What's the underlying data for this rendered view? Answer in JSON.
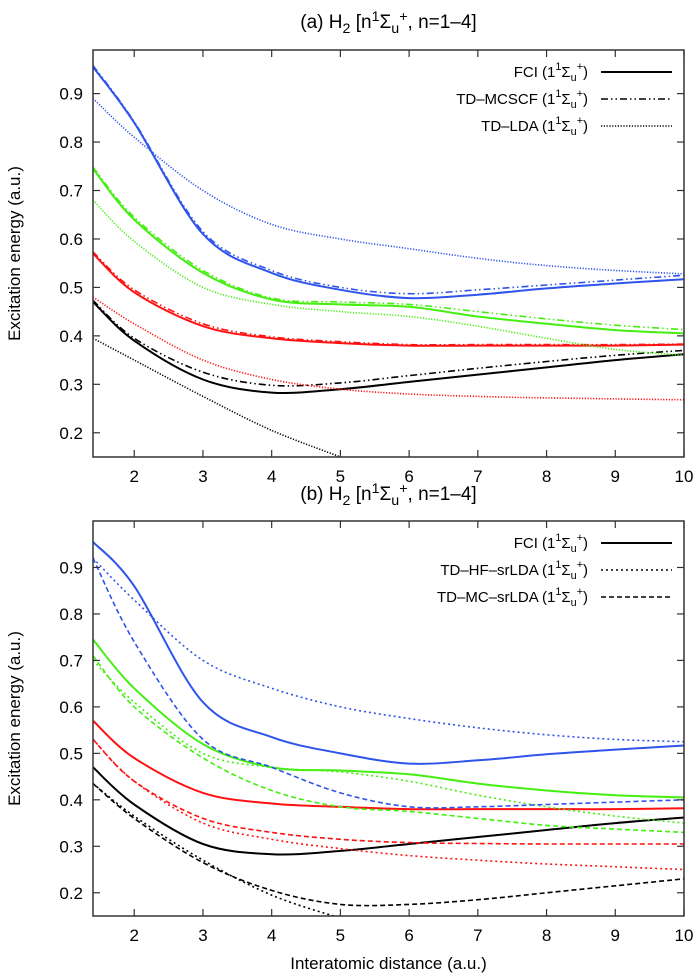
{
  "chart_data": [
    {
      "type": "line",
      "panel_id": "a",
      "title": "(a) H2 [n1Σu+, n=1–4]",
      "title_parts": {
        "prefix": "(a) H",
        "sub1": "2",
        "mid": " [n",
        "sup1": "1",
        "sigma": "Σ",
        "sub2": "u",
        "sup2": "+",
        "suffix": ", n=1–4]"
      },
      "xlabel": "",
      "ylabel": "Excitation energy (a.u.)",
      "xlim": [
        1.4,
        10
      ],
      "ylim": [
        0.15,
        0.99
      ],
      "xticks": [
        2,
        3,
        4,
        5,
        6,
        7,
        8,
        9,
        10
      ],
      "yticks": [
        0.2,
        0.3,
        0.4,
        0.5,
        0.6,
        0.7,
        0.8,
        0.9
      ],
      "ytick_labels": [
        "0.2",
        "0.3",
        "0.4",
        "0.5",
        "0.6",
        "0.7",
        "0.8",
        "0.9"
      ],
      "grid": false,
      "legend_position": "top-right",
      "legend": [
        {
          "label": "FCI (1",
          "sup1": "1",
          "sigma": "Σ",
          "sub": "u",
          "sup2": "+",
          "close": ")",
          "style": "solid"
        },
        {
          "label": "TD–MCSCF (1",
          "sup1": "1",
          "sigma": "Σ",
          "sub": "u",
          "sup2": "+",
          "close": ")",
          "style": "dashdotdot"
        },
        {
          "label": "TD–LDA (1",
          "sup1": "1",
          "sigma": "Σ",
          "sub": "u",
          "sup2": "+",
          "close": ")",
          "style": "dotted-fine"
        }
      ],
      "x": [
        1.4,
        2,
        3,
        4,
        5,
        6,
        7,
        8,
        9,
        10
      ],
      "series": [
        {
          "name": "FCI n=4",
          "method": "FCI",
          "color": "#2f54eb",
          "style": "solid",
          "values": [
            0.955,
            0.84,
            0.61,
            0.53,
            0.495,
            0.478,
            0.485,
            0.498,
            0.508,
            0.517
          ]
        },
        {
          "name": "FCI n=3",
          "method": "FCI",
          "color": "#44ee11",
          "style": "solid",
          "values": [
            0.745,
            0.64,
            0.53,
            0.475,
            0.465,
            0.46,
            0.44,
            0.425,
            0.412,
            0.405
          ]
        },
        {
          "name": "FCI n=2",
          "method": "FCI",
          "color": "#ff1111",
          "style": "solid",
          "values": [
            0.57,
            0.49,
            0.42,
            0.395,
            0.385,
            0.38,
            0.38,
            0.38,
            0.38,
            0.382
          ]
        },
        {
          "name": "FCI n=1",
          "method": "FCI",
          "color": "#000000",
          "style": "solid",
          "values": [
            0.47,
            0.39,
            0.31,
            0.283,
            0.29,
            0.305,
            0.32,
            0.335,
            0.35,
            0.362
          ]
        },
        {
          "name": "TD-MCSCF n=4",
          "method": "TD-MCSCF",
          "color": "#2f54eb",
          "style": "dashdotdot",
          "values": [
            0.958,
            0.842,
            0.615,
            0.535,
            0.5,
            0.487,
            0.495,
            0.505,
            0.515,
            0.525
          ]
        },
        {
          "name": "TD-MCSCF n=3",
          "method": "TD-MCSCF",
          "color": "#44ee11",
          "style": "dashdotdot",
          "values": [
            0.748,
            0.645,
            0.535,
            0.478,
            0.47,
            0.465,
            0.45,
            0.435,
            0.422,
            0.413
          ]
        },
        {
          "name": "TD-MCSCF n=2",
          "method": "TD-MCSCF",
          "color": "#ff1111",
          "style": "dashdotdot",
          "values": [
            0.573,
            0.495,
            0.425,
            0.398,
            0.388,
            0.382,
            0.382,
            0.382,
            0.382,
            0.383
          ]
        },
        {
          "name": "TD-MCSCF n=1",
          "method": "TD-MCSCF",
          "color": "#000000",
          "style": "dashdotdot",
          "values": [
            0.473,
            0.395,
            0.325,
            0.298,
            0.303,
            0.318,
            0.333,
            0.347,
            0.36,
            0.37
          ]
        },
        {
          "name": "TD-LDA n=4",
          "method": "TD-LDA",
          "color": "#2f54eb",
          "style": "dotted-fine",
          "values": [
            0.89,
            0.81,
            0.7,
            0.63,
            0.6,
            0.58,
            0.56,
            0.545,
            0.535,
            0.528
          ]
        },
        {
          "name": "TD-LDA n=3",
          "method": "TD-LDA",
          "color": "#44ee11",
          "style": "dotted-fine",
          "values": [
            0.68,
            0.595,
            0.5,
            0.465,
            0.45,
            0.44,
            0.42,
            0.395,
            0.372,
            0.36
          ]
        },
        {
          "name": "TD-LDA n=2",
          "method": "TD-LDA",
          "color": "#ff1111",
          "style": "dotted-fine",
          "values": [
            0.48,
            0.425,
            0.35,
            0.31,
            0.29,
            0.28,
            0.275,
            0.272,
            0.27,
            0.268
          ]
        },
        {
          "name": "TD-LDA n=1",
          "method": "TD-LDA",
          "color": "#000000",
          "style": "dotted-fine",
          "values": [
            0.395,
            0.35,
            0.275,
            0.205,
            0.15,
            null,
            null,
            null,
            null,
            null
          ]
        }
      ]
    },
    {
      "type": "line",
      "panel_id": "b",
      "title": "(b) H2 [n1Σu+, n=1–4]",
      "title_parts": {
        "prefix": "(b) H",
        "sub1": "2",
        "mid": " [n",
        "sup1": "1",
        "sigma": "Σ",
        "sub2": "u",
        "sup2": "+",
        "suffix": ", n=1–4]"
      },
      "xlabel": "Interatomic distance (a.u.)",
      "ylabel": "Excitation energy (a.u.)",
      "xlim": [
        1.4,
        10
      ],
      "ylim": [
        0.15,
        1.0
      ],
      "xticks": [
        2,
        3,
        4,
        5,
        6,
        7,
        8,
        9,
        10
      ],
      "yticks": [
        0.2,
        0.3,
        0.4,
        0.5,
        0.6,
        0.7,
        0.8,
        0.9
      ],
      "ytick_labels": [
        "0.2",
        "0.3",
        "0.4",
        "0.5",
        "0.6",
        "0.7",
        "0.8",
        "0.9"
      ],
      "grid": false,
      "legend_position": "top-right",
      "legend": [
        {
          "label": "FCI (1",
          "sup1": "1",
          "sigma": "Σ",
          "sub": "u",
          "sup2": "+",
          "close": ")",
          "style": "solid"
        },
        {
          "label": "TD–HF–srLDA (1",
          "sup1": "1",
          "sigma": "Σ",
          "sub": "u",
          "sup2": "+",
          "close": ")",
          "style": "dotted"
        },
        {
          "label": "TD–MC–srLDA (1",
          "sup1": "1",
          "sigma": "Σ",
          "sub": "u",
          "sup2": "+",
          "close": ")",
          "style": "dashed"
        }
      ],
      "x": [
        1.4,
        2,
        3,
        4,
        5,
        6,
        7,
        8,
        9,
        10
      ],
      "series": [
        {
          "name": "FCI n=4",
          "method": "FCI",
          "color": "#2f54eb",
          "style": "solid",
          "values": [
            0.955,
            0.86,
            0.61,
            0.535,
            0.5,
            0.478,
            0.485,
            0.498,
            0.508,
            0.517
          ]
        },
        {
          "name": "FCI n=3",
          "method": "FCI",
          "color": "#44ee11",
          "style": "solid",
          "values": [
            0.745,
            0.64,
            0.52,
            0.47,
            0.463,
            0.455,
            0.435,
            0.42,
            0.41,
            0.405
          ]
        },
        {
          "name": "FCI n=2",
          "method": "FCI",
          "color": "#ff1111",
          "style": "solid",
          "values": [
            0.57,
            0.49,
            0.415,
            0.392,
            0.385,
            0.38,
            0.38,
            0.38,
            0.38,
            0.382
          ]
        },
        {
          "name": "FCI n=1",
          "method": "FCI",
          "color": "#000000",
          "style": "solid",
          "values": [
            0.47,
            0.39,
            0.305,
            0.283,
            0.29,
            0.305,
            0.32,
            0.335,
            0.35,
            0.362
          ]
        },
        {
          "name": "TD-HF-srLDA n=4",
          "method": "TD-HF-srLDA",
          "color": "#2f54eb",
          "style": "dotted",
          "values": [
            0.92,
            0.83,
            0.7,
            0.64,
            0.6,
            0.575,
            0.555,
            0.54,
            0.53,
            0.525
          ]
        },
        {
          "name": "TD-HF-srLDA n=3",
          "method": "TD-HF-srLDA",
          "color": "#44ee11",
          "style": "dotted",
          "values": [
            0.7,
            0.61,
            0.5,
            0.47,
            0.46,
            0.44,
            0.41,
            0.385,
            0.365,
            0.35
          ]
        },
        {
          "name": "TD-HF-srLDA n=2",
          "method": "TD-HF-srLDA",
          "color": "#ff1111",
          "style": "dotted",
          "values": [
            0.53,
            0.44,
            0.35,
            0.315,
            0.295,
            0.28,
            0.27,
            0.262,
            0.256,
            0.25
          ]
        },
        {
          "name": "TD-HF-srLDA n=1",
          "method": "TD-HF-srLDA",
          "color": "#000000",
          "style": "dotted",
          "values": [
            0.435,
            0.365,
            0.27,
            0.195,
            0.145,
            null,
            null,
            null,
            null,
            null
          ]
        },
        {
          "name": "TD-MC-srLDA n=4",
          "method": "TD-MC-srLDA",
          "color": "#2f54eb",
          "style": "dashed",
          "values": [
            0.92,
            0.74,
            0.53,
            0.47,
            0.415,
            0.385,
            0.385,
            0.39,
            0.395,
            0.4
          ]
        },
        {
          "name": "TD-MC-srLDA n=3",
          "method": "TD-MC-srLDA",
          "color": "#44ee11",
          "style": "dashed",
          "values": [
            0.71,
            0.6,
            0.49,
            0.42,
            0.385,
            0.375,
            0.36,
            0.345,
            0.337,
            0.33
          ]
        },
        {
          "name": "TD-MC-srLDA n=2",
          "method": "TD-MC-srLDA",
          "color": "#ff1111",
          "style": "dashed",
          "values": [
            0.53,
            0.44,
            0.36,
            0.33,
            0.315,
            0.308,
            0.306,
            0.305,
            0.305,
            0.305
          ]
        },
        {
          "name": "TD-MC-srLDA n=1",
          "method": "TD-MC-srLDA",
          "color": "#000000",
          "style": "dashed",
          "values": [
            0.435,
            0.36,
            0.265,
            0.205,
            0.175,
            0.175,
            0.185,
            0.2,
            0.215,
            0.23
          ]
        }
      ]
    }
  ]
}
